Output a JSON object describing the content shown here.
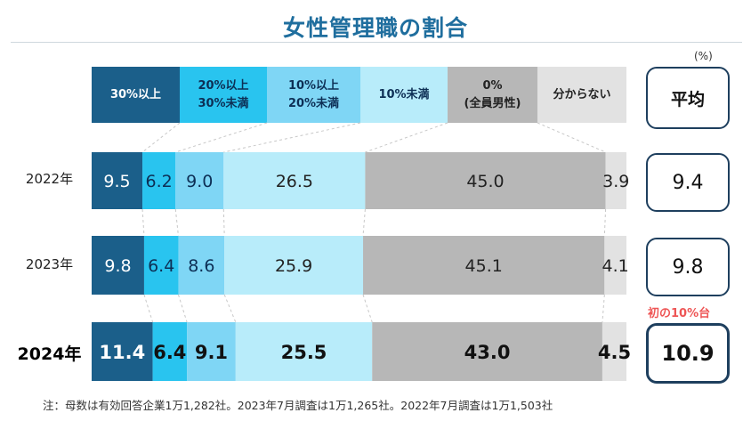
{
  "title": "女性管理職の割合",
  "unit_label": "(%)",
  "average_header": "平均",
  "first_label": "初の10%台",
  "note": "注：母数は有効回答企業1万1,282社。2023年7月調査は1万1,265社。2022年7月調査は1万1,503社",
  "colors": {
    "c1": "#1b5f8a",
    "c2": "#29c4ef",
    "c3": "#7fd6f5",
    "c4": "#b8ecfa",
    "c5": "#b7b7b7",
    "c6": "#e2e2e2"
  },
  "legend": [
    {
      "label": "30%以上",
      "color": "#1b5f8a",
      "text_color": "#ffffff"
    },
    {
      "label": "20%以上\n30%未満",
      "color": "#29c4ef",
      "text_color": "#0d2f55"
    },
    {
      "label": "10%以上\n20%未満",
      "color": "#7fd6f5",
      "text_color": "#0d2f55"
    },
    {
      "label": "10%未満",
      "color": "#b8ecfa",
      "text_color": "#0d2f55"
    },
    {
      "label": "0%\n(全員男性)",
      "color": "#b7b7b7",
      "text_color": "#222222"
    },
    {
      "label": "分からない",
      "color": "#e2e2e2",
      "text_color": "#222222"
    }
  ],
  "chart_data": {
    "type": "bar",
    "orientation": "horizontal-stacked-100",
    "categories": [
      "2022年",
      "2023年",
      "2024年"
    ],
    "series": [
      {
        "name": "30%以上",
        "values": [
          9.5,
          9.8,
          11.4
        ]
      },
      {
        "name": "20%以上30%未満",
        "values": [
          6.2,
          6.4,
          6.4
        ]
      },
      {
        "name": "10%以上20%未満",
        "values": [
          9.0,
          8.6,
          9.1
        ]
      },
      {
        "name": "10%未満",
        "values": [
          26.5,
          25.9,
          25.5
        ]
      },
      {
        "name": "0%(全員男性)",
        "values": [
          45.0,
          45.1,
          43.0
        ]
      },
      {
        "name": "分からない",
        "values": [
          3.9,
          4.1,
          4.5
        ]
      }
    ],
    "labels": [
      [
        "9.5",
        "6.2",
        "9.0",
        "26.5",
        "45.0",
        "3.9"
      ],
      [
        "9.8",
        "6.4",
        "8.6",
        "25.9",
        "45.1",
        "4.1"
      ],
      [
        "11.4",
        "6.4",
        "9.1",
        "25.5",
        "43.0",
        "4.5"
      ]
    ],
    "averages": [
      "9.4",
      "9.8",
      "10.9"
    ],
    "xlim": [
      0,
      100
    ]
  }
}
